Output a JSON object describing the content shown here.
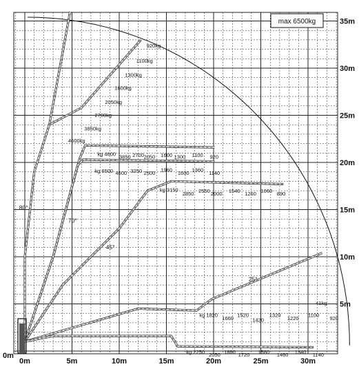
{
  "title": "max 6500kg",
  "x_axis_labels": [
    "0m",
    "5m",
    "10m",
    "15m",
    "20m",
    "25m",
    "30m"
  ],
  "y_axis_labels": [
    "0m",
    "5m",
    "10m",
    "15m",
    "20m",
    "25m",
    "30m",
    "35m"
  ],
  "angles": [
    {
      "label": "80°",
      "x": -0.6,
      "y": 15
    },
    {
      "label": "70°",
      "x": 4.6,
      "y": 13.6
    },
    {
      "label": "45°",
      "x": 8.6,
      "y": 10.8
    },
    {
      "label": "25°",
      "x": 23.7,
      "y": 7.4
    }
  ],
  "configurations": [
    {
      "name": "steep-jib-80",
      "boom_path": [
        [
          0,
          1
        ],
        [
          0,
          10
        ],
        [
          1,
          19
        ],
        [
          2.6,
          24
        ],
        [
          4.8,
          36
        ]
      ],
      "loads": [
        {
          "text": "920kg",
          "x": 12.9,
          "y": 32.2
        },
        {
          "text": "1100kg",
          "x": 11.8,
          "y": 30.6
        },
        {
          "text": "1300kg",
          "x": 10.6,
          "y": 29.1
        },
        {
          "text": "1600kg",
          "x": 9.5,
          "y": 27.7
        },
        {
          "text": "2050kg",
          "x": 8.5,
          "y": 26.2
        },
        {
          "text": "2700kg",
          "x": 7.4,
          "y": 24.8
        },
        {
          "text": "3850kg",
          "x": 6.3,
          "y": 23.4
        },
        {
          "text": "4600kg",
          "x": 4.6,
          "y": 22.1
        }
      ],
      "jib_path": [
        [
          2.6,
          24
        ],
        [
          6,
          25.8
        ],
        [
          12.3,
          33
        ]
      ]
    },
    {
      "name": "jib-config-a",
      "boom_path": [
        [
          0,
          1
        ],
        [
          3,
          10
        ],
        [
          5.8,
          20.4
        ],
        [
          6.4,
          21.8
        ],
        [
          20.1,
          21.6
        ]
      ],
      "loads": [
        {
          "text": "kg 4600",
          "x": 7.7,
          "y": 20.7
        },
        {
          "text": "3850",
          "x": 10,
          "y": 20.4
        },
        {
          "text": "2700",
          "x": 11.4,
          "y": 20.6
        },
        {
          "text": "2050",
          "x": 12.6,
          "y": 20.4
        },
        {
          "text": "1600",
          "x": 14.4,
          "y": 20.6
        },
        {
          "text": "1300",
          "x": 15.8,
          "y": 20.4
        },
        {
          "text": "1100",
          "x": 17.7,
          "y": 20.6
        },
        {
          "text": "920",
          "x": 19.6,
          "y": 20.4
        }
      ]
    },
    {
      "name": "jib-config-b",
      "boom_path": [
        [
          0,
          1
        ],
        [
          3,
          10
        ],
        [
          5.6,
          19.7
        ],
        [
          6.2,
          20.3
        ],
        [
          20.1,
          20.1
        ]
      ],
      "loads": [
        {
          "text": "kg 6500",
          "x": 7.4,
          "y": 18.9
        },
        {
          "text": "4600",
          "x": 9.6,
          "y": 18.7
        },
        {
          "text": "3250",
          "x": 11.2,
          "y": 18.9
        },
        {
          "text": "2500",
          "x": 12.6,
          "y": 18.7
        },
        {
          "text": "1960",
          "x": 14.4,
          "y": 19
        },
        {
          "text": "1600",
          "x": 16.2,
          "y": 18.7
        },
        {
          "text": "1360",
          "x": 17.7,
          "y": 19
        },
        {
          "text": "1140",
          "x": 19.5,
          "y": 18.7
        }
      ]
    },
    {
      "name": "jib-config-45",
      "boom_path": [
        [
          0,
          1
        ],
        [
          4,
          7
        ],
        [
          10,
          13
        ],
        [
          13,
          17
        ],
        [
          15.5,
          18
        ],
        [
          27.4,
          17.7
        ]
      ],
      "loads": [
        {
          "text": "kg 3150",
          "x": 14.3,
          "y": 16.9
        },
        {
          "text": "2850",
          "x": 16.7,
          "y": 16.5
        },
        {
          "text": "2550",
          "x": 18.4,
          "y": 16.8
        },
        {
          "text": "2000",
          "x": 19.7,
          "y": 16.5
        },
        {
          "text": "1540",
          "x": 21.6,
          "y": 16.8
        },
        {
          "text": "1260",
          "x": 23.3,
          "y": 16.5
        },
        {
          "text": "1060",
          "x": 25,
          "y": 16.8
        },
        {
          "text": "890",
          "x": 26.7,
          "y": 16.5
        }
      ]
    },
    {
      "name": "jib-config-25",
      "boom_path": [
        [
          0,
          1
        ],
        [
          12,
          4.5
        ],
        [
          18.2,
          4.3
        ],
        [
          19.8,
          5.5
        ],
        [
          31.5,
          10.4
        ]
      ],
      "loads": [
        {
          "text": "kg 1820",
          "x": 18.5,
          "y": 3.6
        },
        {
          "text": "1660",
          "x": 20.9,
          "y": 3.3
        },
        {
          "text": "1520",
          "x": 22.5,
          "y": 3.6
        },
        {
          "text": "1420",
          "x": 24.1,
          "y": 3.1
        },
        {
          "text": "1320",
          "x": 25.9,
          "y": 3.6
        },
        {
          "text": "1220",
          "x": 27.8,
          "y": 3.3
        },
        {
          "text": "1100",
          "x": 30,
          "y": 3.6
        },
        {
          "text": "920",
          "x": 32.3,
          "y": 3.3
        },
        {
          "text": "41kg",
          "x": 30.8,
          "y": 4.9
        }
      ]
    },
    {
      "name": "horizontal-low",
      "boom_path": [
        [
          0,
          1
        ],
        [
          3,
          1.6
        ],
        [
          15.5,
          1.6
        ],
        [
          16.2,
          0.5
        ],
        [
          30.6,
          0.4
        ]
      ],
      "loads": [
        {
          "text": "kg 2250",
          "x": 17.1,
          "y": -0.3
        },
        {
          "text": "2050",
          "x": 19.5,
          "y": -0.6
        },
        {
          "text": "1860",
          "x": 21.1,
          "y": -0.3
        },
        {
          "text": "1720",
          "x": 22.6,
          "y": -0.6
        },
        {
          "text": "1580",
          "x": 24.7,
          "y": -0.3
        },
        {
          "text": "1460",
          "x": 26.7,
          "y": -0.6
        },
        {
          "text": "1340",
          "x": 28.6,
          "y": -0.3
        },
        {
          "text": "1140",
          "x": 30.5,
          "y": -0.6
        }
      ]
    }
  ],
  "colors": {
    "grid": "#222222",
    "boom": "#333333",
    "text": "#111111",
    "background": "#ffffff"
  }
}
